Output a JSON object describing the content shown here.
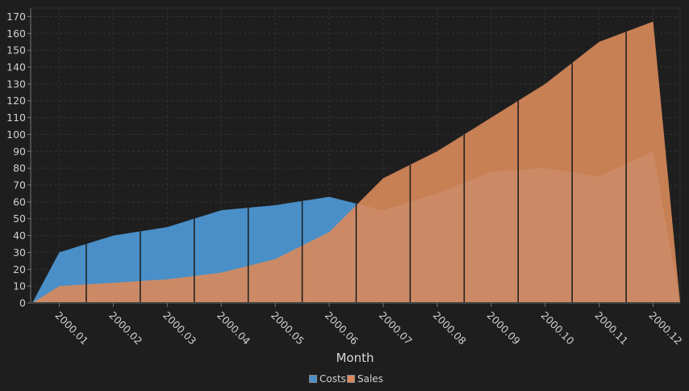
{
  "chart_data": {
    "type": "area",
    "title": "",
    "xlabel": "Month",
    "ylabel": "",
    "categories": [
      "2000.01",
      "2000.02",
      "2000.03",
      "2000.04",
      "2000.05",
      "2000.06",
      "2000.07",
      "2000.08",
      "2000.09",
      "2000.10",
      "2000.11",
      "2000.12"
    ],
    "series": [
      {
        "name": "Costs",
        "color": "#4a8fc8",
        "values": [
          30,
          40,
          45,
          55,
          58,
          63,
          55,
          65,
          78,
          80,
          75,
          90
        ]
      },
      {
        "name": "Sales",
        "color": "#d9895a",
        "values": [
          10,
          12,
          14,
          18,
          26,
          42,
          74,
          90,
          110,
          130,
          155,
          167
        ]
      }
    ],
    "ylim": [
      0,
      175
    ],
    "yticks": [
      0,
      10,
      20,
      30,
      40,
      50,
      60,
      70,
      80,
      90,
      100,
      110,
      120,
      130,
      140,
      150,
      160,
      170
    ],
    "grid": true,
    "legend": "bottom-center"
  }
}
